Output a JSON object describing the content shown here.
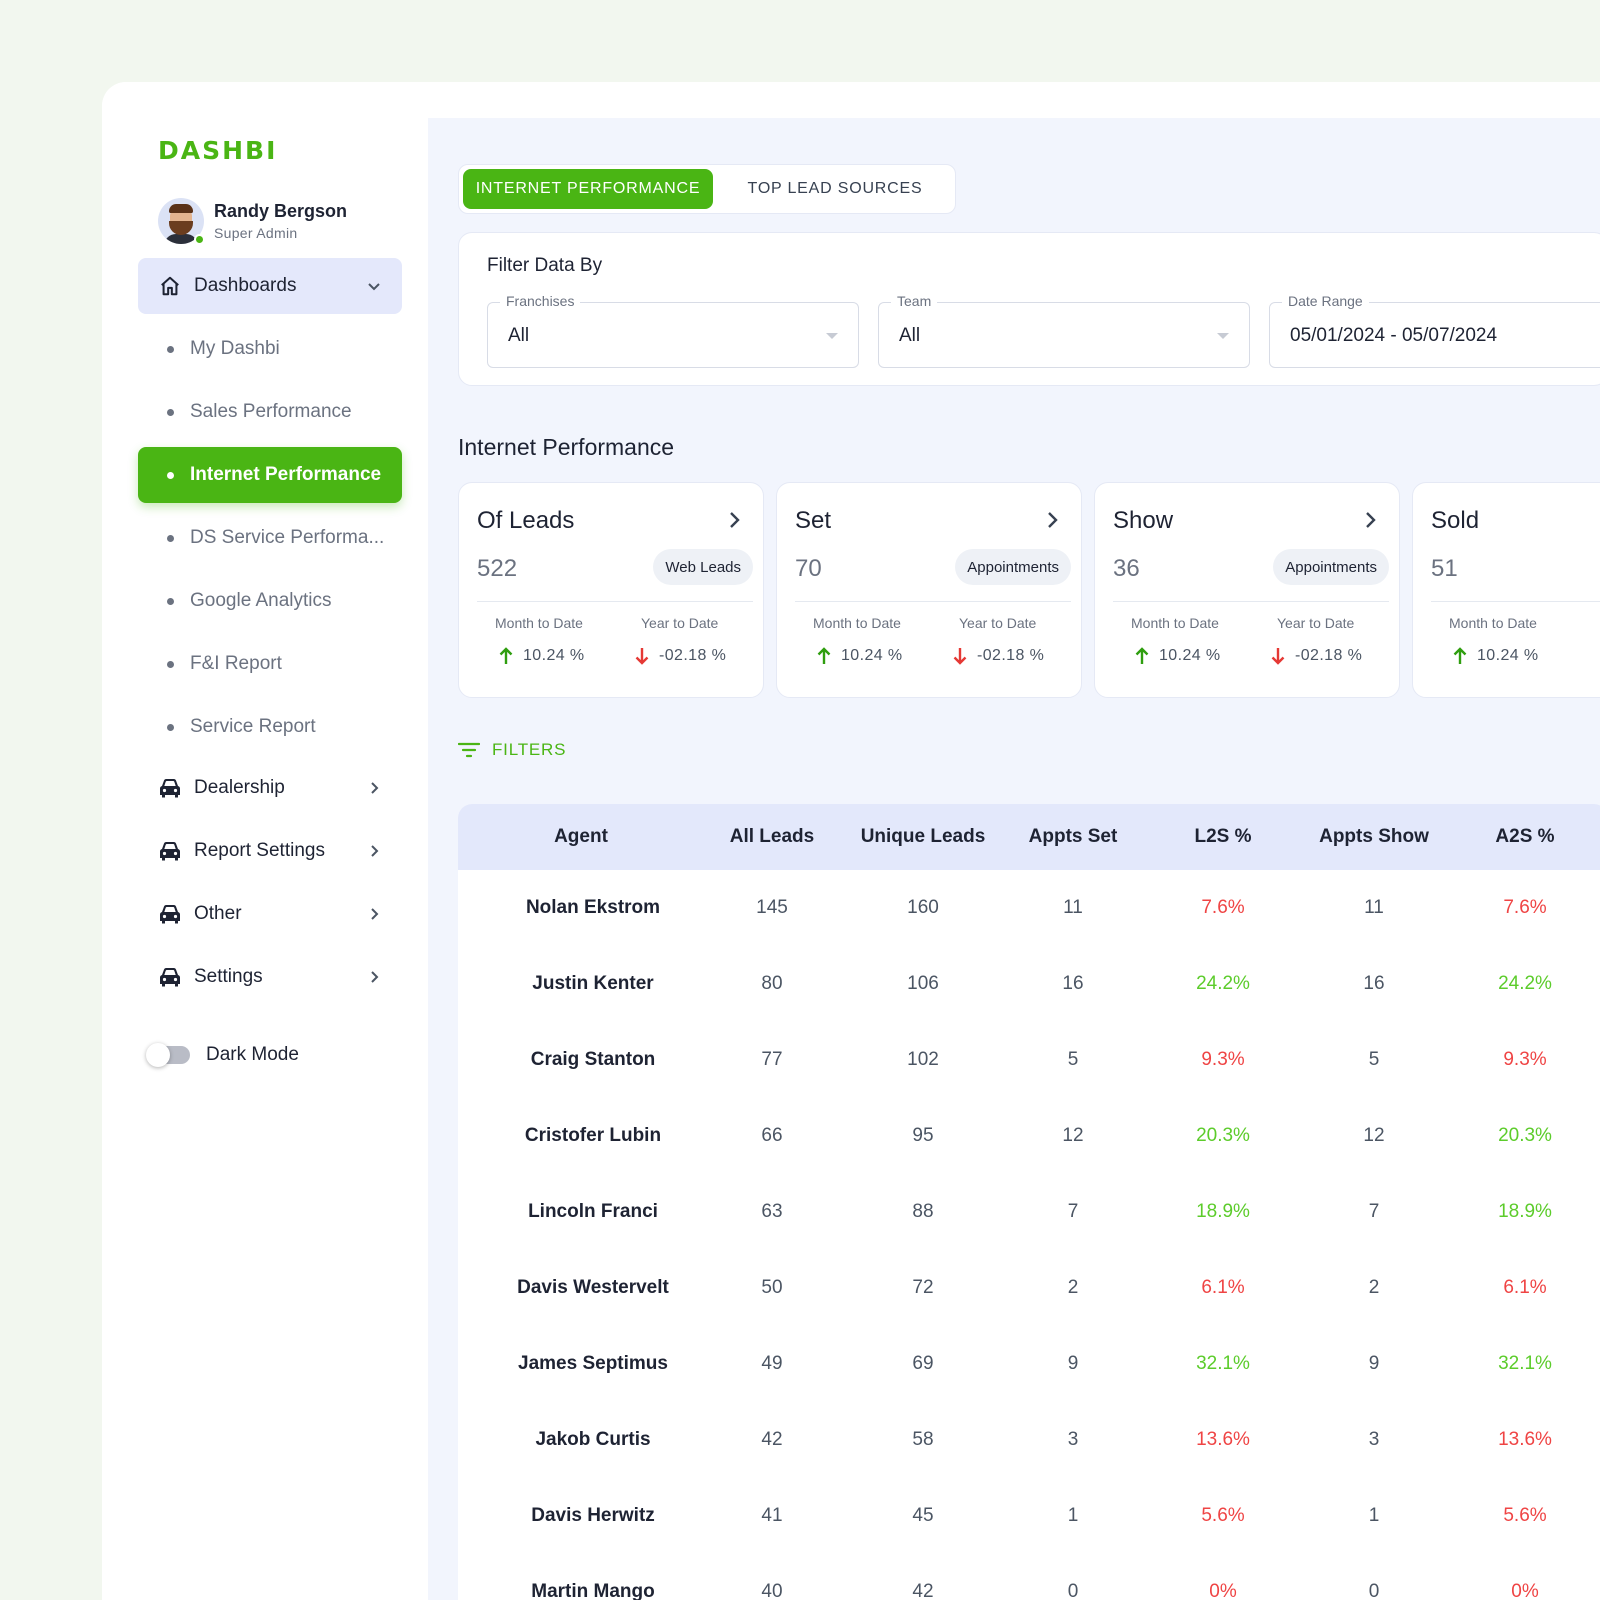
{
  "brand": {
    "logo_text": "DASHBI",
    "accent": "#4ab514"
  },
  "user": {
    "name": "Randy Bergson",
    "role": "Super Admin"
  },
  "sidebar": {
    "dashboards_label": "Dashboards",
    "sub_items": [
      "My Dashbi",
      "Sales Performance",
      "Internet Performance",
      "DS Service Performa...",
      "Google Analytics",
      "F&I Report",
      "Service Report"
    ],
    "active_sub": "Internet Performance",
    "groups": [
      "Dealership",
      "Report Settings",
      "Other",
      "Settings"
    ],
    "dark_mode_label": "Dark Mode",
    "dark_mode_on": false
  },
  "tabs": {
    "active": "INTERNET PERFORMANCE",
    "inactive": "TOP LEAD SOURCES"
  },
  "filters": {
    "title": "Filter Data By",
    "franchises": {
      "label": "Franchises",
      "value": "All"
    },
    "team": {
      "label": "Team",
      "value": "All"
    },
    "date_range": {
      "label": "Date Range",
      "value": "05/01/2024 - 05/07/2024"
    }
  },
  "section_title": "Internet Performance",
  "stats": [
    {
      "title": "Of Leads",
      "value": "522",
      "badge": "Web Leads",
      "mtd_label": "Month to Date",
      "mtd": "10.24 %",
      "ytd_label": "Year to Date",
      "ytd": "-02.18 %"
    },
    {
      "title": "Set",
      "value": "70",
      "badge": "Appointments",
      "mtd_label": "Month to Date",
      "mtd": "10.24 %",
      "ytd_label": "Year to Date",
      "ytd": "-02.18 %"
    },
    {
      "title": "Show",
      "value": "36",
      "badge": "Appointments",
      "mtd_label": "Month to Date",
      "mtd": "10.24 %",
      "ytd_label": "Year to Date",
      "ytd": "-02.18 %"
    },
    {
      "title": "Sold",
      "value": "51",
      "badge": "",
      "mtd_label": "Month to Date",
      "mtd": "10.24 %",
      "ytd_label": "",
      "ytd": ""
    }
  ],
  "filters_link": "FILTERS",
  "table": {
    "headers": [
      "Agent",
      "All Leads",
      "Unique Leads",
      "Appts Set",
      "L2S %",
      "Appts Show",
      "A2S %"
    ],
    "rows": [
      [
        "Nolan Ekstrom",
        "145",
        "160",
        "11",
        "7.6%",
        "11",
        "7.6%"
      ],
      [
        "Justin Kenter",
        "80",
        "106",
        "16",
        "24.2%",
        "16",
        "24.2%"
      ],
      [
        "Craig Stanton",
        "77",
        "102",
        "5",
        "9.3%",
        "5",
        "9.3%"
      ],
      [
        "Cristofer Lubin",
        "66",
        "95",
        "12",
        "20.3%",
        "12",
        "20.3%"
      ],
      [
        "Lincoln Franci",
        "63",
        "88",
        "7",
        "18.9%",
        "7",
        "18.9%"
      ],
      [
        "Davis Westervelt",
        "50",
        "72",
        "2",
        "6.1%",
        "2",
        "6.1%"
      ],
      [
        "James Septimus",
        "49",
        "69",
        "9",
        "32.1%",
        "9",
        "32.1%"
      ],
      [
        "Jakob Curtis",
        "42",
        "58",
        "3",
        "13.6%",
        "3",
        "13.6%"
      ],
      [
        "Davis Herwitz",
        "41",
        "45",
        "1",
        "5.6%",
        "1",
        "5.6%"
      ],
      [
        "Martin Mango",
        "40",
        "42",
        "0",
        "0%",
        "0",
        "0%"
      ]
    ],
    "pct_status": [
      "red",
      "green",
      "red",
      "green",
      "green",
      "red",
      "green",
      "red",
      "red",
      "red"
    ]
  },
  "colors": {
    "positive": "#5ccc2b",
    "negative": "#ef4444",
    "up_arrow": "#2f9e0f",
    "down_arrow": "#e53935"
  }
}
